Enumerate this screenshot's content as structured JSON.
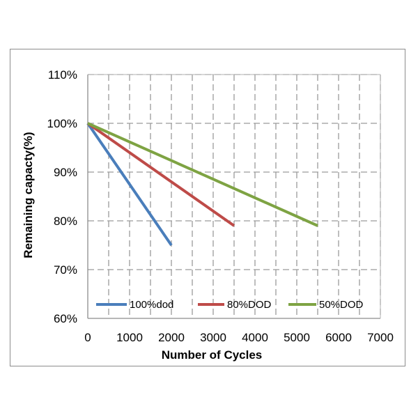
{
  "chart_data": {
    "type": "line",
    "xlabel": "Number of Cycles",
    "ylabel": "Remaining capacty(%)",
    "xlim": [
      0,
      7000
    ],
    "ylim": [
      60,
      110
    ],
    "xticks": [
      0,
      1000,
      2000,
      3000,
      4000,
      5000,
      6000,
      7000
    ],
    "yticks": [
      60,
      70,
      80,
      90,
      100,
      110
    ],
    "x_minor_gridlines": [
      500,
      1500,
      2500,
      3500,
      4500,
      5500,
      6500
    ],
    "y_tick_suffix": "%",
    "grid": true,
    "legend_position": "bottom-inside",
    "series": [
      {
        "name": "100%dod",
        "color": "#4a7ebb",
        "x": [
          0,
          2000
        ],
        "y": [
          100,
          75
        ]
      },
      {
        "name": "80%DOD",
        "color": "#be4b48",
        "x": [
          0,
          3500
        ],
        "y": [
          100,
          79
        ]
      },
      {
        "name": "50%DOD",
        "color": "#7ea343",
        "x": [
          0,
          5500
        ],
        "y": [
          100,
          79
        ]
      }
    ]
  }
}
